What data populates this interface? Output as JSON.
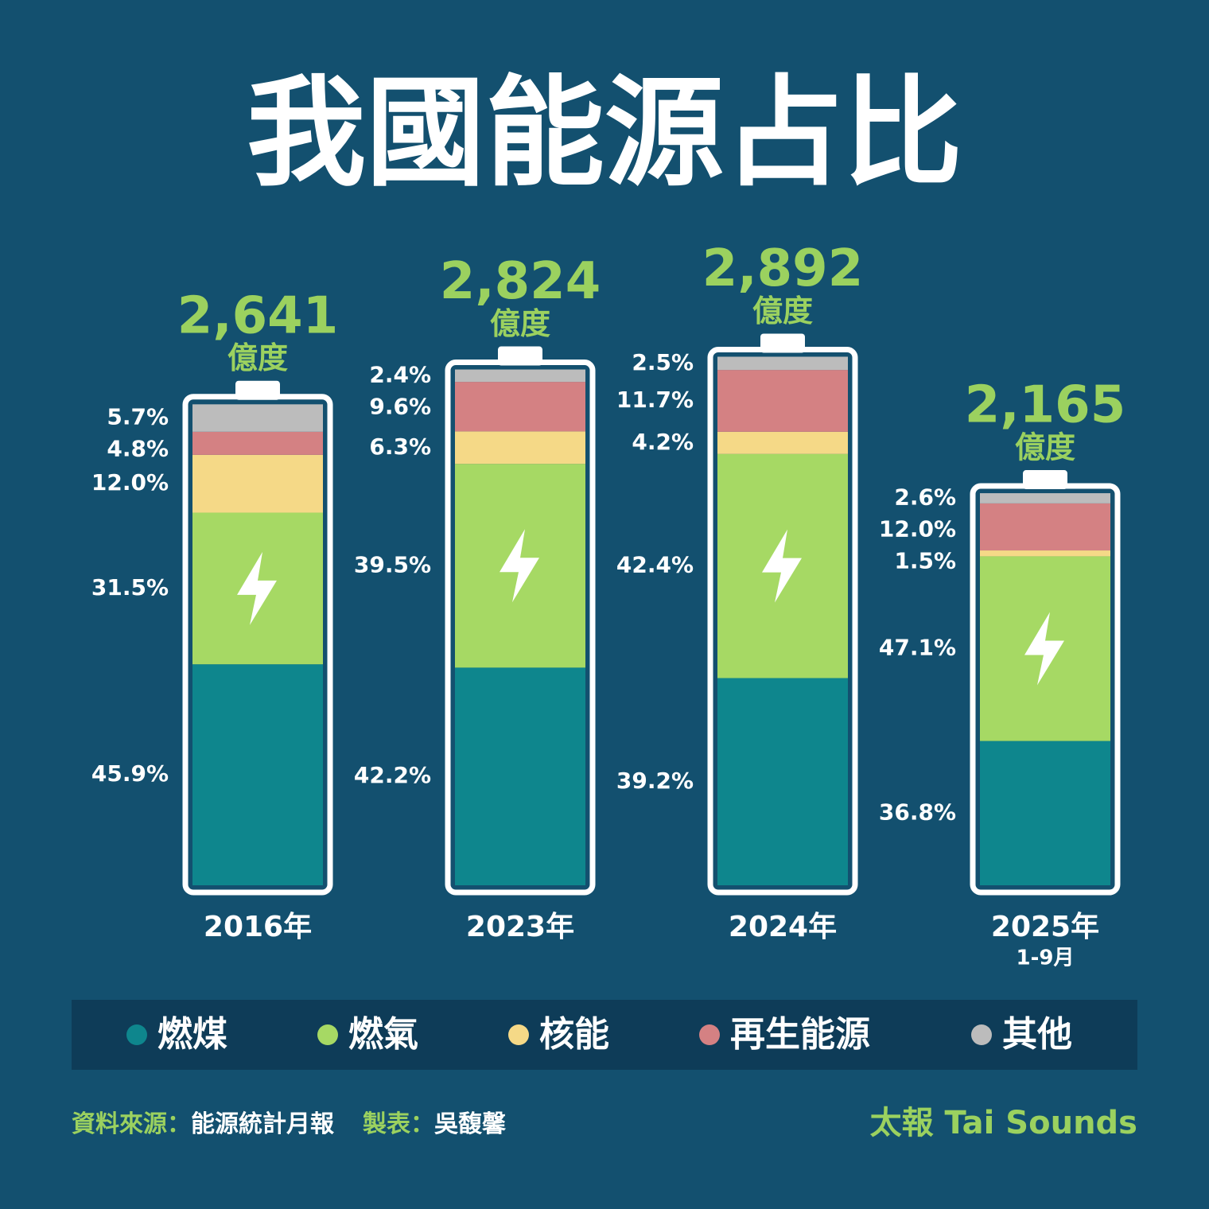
{
  "chart_data": {
    "type": "battery",
    "title": "我國能源占比",
    "categories": [
      "2016年",
      "2023年",
      "2024年",
      "2025年"
    ],
    "category_notes": [
      null,
      null,
      null,
      "1-9月"
    ],
    "totals": [
      2641,
      2824,
      2892,
      2165
    ],
    "total_labels": [
      "2,641",
      "2,824",
      "2,892",
      "2,165"
    ],
    "total_unit": "億度",
    "series": [
      {
        "name": "燃煤",
        "color": "#0e868d",
        "values": [
          45.9,
          42.2,
          39.2,
          36.8
        ],
        "value_labels": [
          "45.9%",
          "42.2%",
          "39.2%",
          "36.8%"
        ]
      },
      {
        "name": "燃氣",
        "color": "#a6d964",
        "values": [
          31.5,
          39.5,
          42.4,
          47.1
        ],
        "value_labels": [
          "31.5%",
          "39.5%",
          "42.4%",
          "47.1%"
        ]
      },
      {
        "name": "核能",
        "color": "#f5d987",
        "values": [
          12.0,
          6.3,
          4.2,
          1.5
        ],
        "value_labels": [
          "12.0%",
          "6.3%",
          "4.2%",
          "1.5%"
        ]
      },
      {
        "name": "再生能源",
        "color": "#d48183",
        "values": [
          4.8,
          9.6,
          11.7,
          12.0
        ],
        "value_labels": [
          "4.8%",
          "9.6%",
          "11.7%",
          "12.0%"
        ]
      },
      {
        "name": "其他",
        "color": "#bcbcbc",
        "values": [
          5.7,
          2.4,
          2.5,
          2.6
        ],
        "value_labels": [
          "5.7%",
          "2.4%",
          "2.5%",
          "2.6%"
        ]
      }
    ]
  },
  "footer": {
    "source_label": "資料來源：",
    "source": "能源統計月報",
    "author_label": "製表：",
    "author": "吳馥馨",
    "brand": "太報 Tai Sounds"
  }
}
